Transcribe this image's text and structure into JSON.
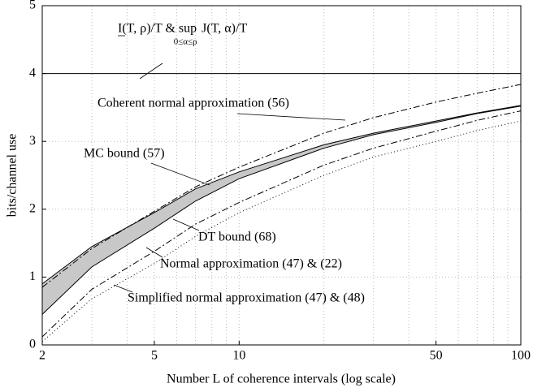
{
  "chart_data": {
    "type": "line",
    "xlabel": "Number L of coherence intervals (log scale)",
    "ylabel": "bits/channel use",
    "xscale": "log",
    "x": [
      2,
      3,
      5,
      7,
      10,
      20,
      30,
      50,
      70,
      100
    ],
    "xlim": [
      2,
      100
    ],
    "ylim": [
      0,
      5
    ],
    "xticks": [
      2,
      5,
      10,
      50,
      100
    ],
    "xminor": [
      3,
      4,
      6,
      7,
      8,
      9,
      20,
      30,
      40,
      60,
      70,
      80,
      90
    ],
    "yticks": [
      0,
      1,
      2,
      3,
      4,
      5
    ],
    "grid": true,
    "series": [
      {
        "name": "I(T, ρ)/T & sup J(T, α)/T",
        "color": "#000000",
        "dash": "none",
        "values": [
          4,
          4,
          4,
          4,
          4,
          4,
          4,
          4,
          4,
          4
        ]
      },
      {
        "name": "Coherent normal approximation (56)",
        "color": "#000000",
        "dash": "8 3 2 3",
        "values": [
          0.85,
          1.42,
          1.97,
          2.33,
          2.62,
          3.12,
          3.35,
          3.58,
          3.71,
          3.84
        ]
      },
      {
        "name": "MC bound (57)",
        "color": "#000000",
        "dash": "none",
        "values": [
          0.9,
          1.45,
          1.95,
          2.3,
          2.55,
          2.95,
          3.12,
          3.3,
          3.42,
          3.53
        ]
      },
      {
        "name": "DT bound (68)",
        "color": "#000000",
        "dash": "none",
        "values": [
          0.45,
          1.15,
          1.72,
          2.12,
          2.45,
          2.9,
          3.1,
          3.28,
          3.41,
          3.52
        ]
      },
      {
        "name": "Normal approximation (47) & (22)",
        "color": "#000000",
        "dash": "8 3 2 3",
        "values": [
          0.12,
          0.82,
          1.38,
          1.78,
          2.1,
          2.65,
          2.9,
          3.15,
          3.31,
          3.45
        ]
      },
      {
        "name": "Simplified normal approximation (47) & (48)",
        "color": "#000000",
        "dash": "1 3",
        "values": [
          0.05,
          0.68,
          1.2,
          1.6,
          1.95,
          2.5,
          2.77,
          3.0,
          3.16,
          3.3
        ]
      }
    ],
    "fill_between": [
      2,
      3
    ],
    "fill_color": "#c8c8c8",
    "annotations": [
      {
        "text": "I(T, ρ)/T & sup",
        "sub": "0≤α≤ρ",
        "text2": "J(T, α)/T"
      },
      {
        "text": "Coherent normal approximation (56)"
      },
      {
        "text": "MC bound (57)"
      },
      {
        "text": "DT bound (68)"
      },
      {
        "text": "Normal approximation (47) & (22)"
      },
      {
        "text": "Simplified normal approximation (47) & (48)"
      }
    ]
  }
}
